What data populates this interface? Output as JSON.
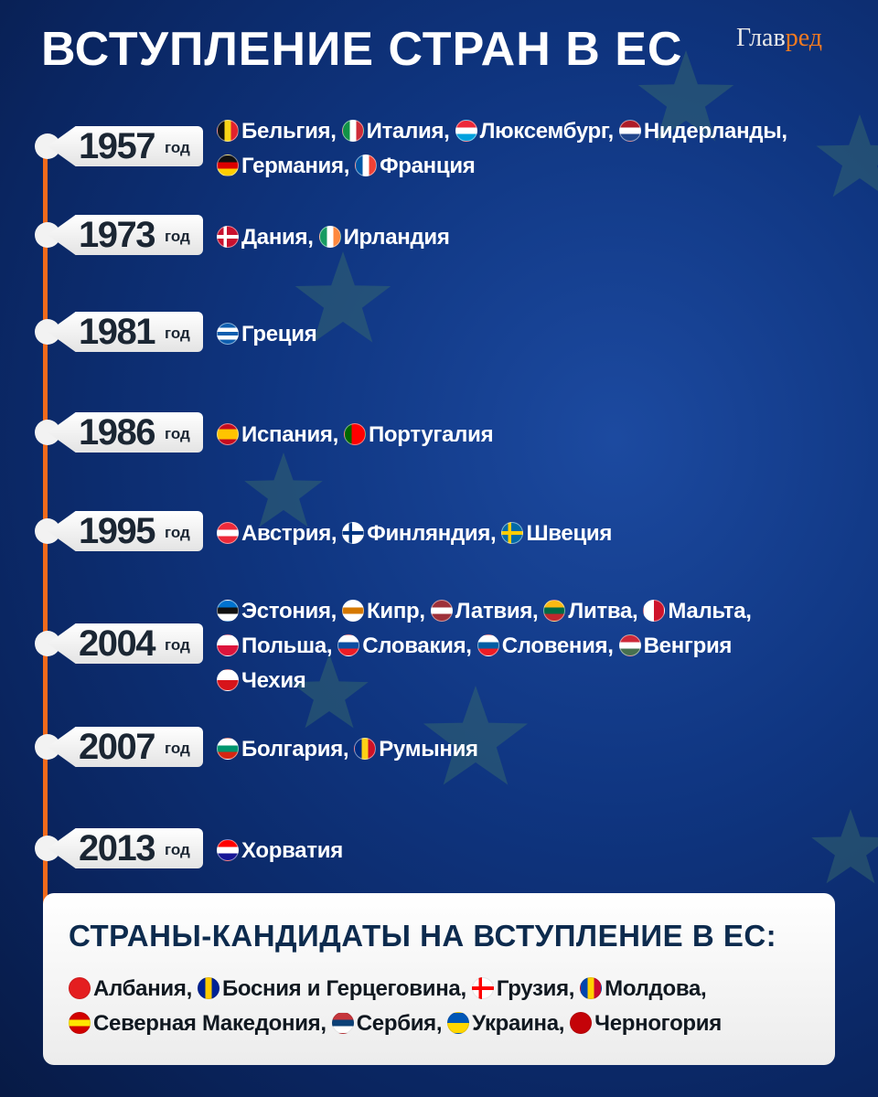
{
  "title": "ВСТУПЛЕНИЕ СТРАН В ЕС",
  "logo": {
    "main": "Глав",
    "accent": "ред"
  },
  "year_suffix": "год",
  "colors": {
    "timeline": "#f26a1b",
    "background": "#0f3580",
    "candidate_title": "#0d2b4e",
    "logo_accent": "#f47a20"
  },
  "timeline": [
    {
      "year": "1957",
      "countries": [
        {
          "name": "Бельгия,",
          "flag": "belgium",
          "dir": "v",
          "colors": [
            "#111",
            "#f8d516",
            "#e3222c"
          ]
        },
        {
          "name": "Италия,",
          "flag": "italy",
          "dir": "v",
          "colors": [
            "#119246",
            "#fff",
            "#ce2b37"
          ]
        },
        {
          "name": "Люксембург,",
          "flag": "luxembourg",
          "dir": "h",
          "colors": [
            "#ed2939",
            "#fff",
            "#00a1de"
          ]
        },
        {
          "name": "Нидерланды,",
          "flag": "netherlands",
          "dir": "h",
          "colors": [
            "#ae1c28",
            "#fff",
            "#21468b"
          ]
        },
        {
          "name": "Германия,",
          "flag": "germany",
          "dir": "h",
          "colors": [
            "#111",
            "#dd0000",
            "#ffce00"
          ]
        },
        {
          "name": "Франция",
          "flag": "france",
          "dir": "v",
          "colors": [
            "#0055a4",
            "#fff",
            "#ef4135"
          ]
        }
      ]
    },
    {
      "year": "1973",
      "countries": [
        {
          "name": "Дания,",
          "flag": "denmark",
          "dir": "cross",
          "colors": [
            "#c8102e",
            "#fff"
          ]
        },
        {
          "name": "Ирландия",
          "flag": "ireland",
          "dir": "v",
          "colors": [
            "#169b62",
            "#fff",
            "#ff883e"
          ]
        }
      ]
    },
    {
      "year": "1981",
      "countries": [
        {
          "name": "Греция",
          "flag": "greece",
          "dir": "h",
          "colors": [
            "#0d5eaf",
            "#fff",
            "#0d5eaf",
            "#fff",
            "#0d5eaf"
          ]
        }
      ]
    },
    {
      "year": "1986",
      "countries": [
        {
          "name": "Испания,",
          "flag": "spain",
          "dir": "h",
          "colors": [
            "#c60b1e",
            "#ffc400",
            "#ffc400",
            "#c60b1e"
          ]
        },
        {
          "name": "Португалия",
          "flag": "portugal",
          "dir": "v",
          "colors": [
            "#006600",
            "#ff0000",
            "#ff0000"
          ]
        }
      ]
    },
    {
      "year": "1995",
      "countries": [
        {
          "name": "Австрия,",
          "flag": "austria",
          "dir": "h",
          "colors": [
            "#ed2939",
            "#fff",
            "#ed2939"
          ]
        },
        {
          "name": "Финляндия,",
          "flag": "finland",
          "dir": "cross",
          "colors": [
            "#fff",
            "#003580"
          ]
        },
        {
          "name": "Швеция",
          "flag": "sweden",
          "dir": "cross",
          "colors": [
            "#006aa7",
            "#fecc00"
          ]
        }
      ]
    },
    {
      "year": "2004",
      "countries": [
        {
          "name": "Эстония,",
          "flag": "estonia",
          "dir": "h",
          "colors": [
            "#0072ce",
            "#111",
            "#fff"
          ]
        },
        {
          "name": "Кипр,",
          "flag": "cyprus",
          "dir": "h",
          "colors": [
            "#fff",
            "#d57800",
            "#fff"
          ]
        },
        {
          "name": "Латвия,",
          "flag": "latvia",
          "dir": "h",
          "colors": [
            "#9e3039",
            "#fff",
            "#9e3039"
          ]
        },
        {
          "name": "Литва,",
          "flag": "lithuania",
          "dir": "h",
          "colors": [
            "#fdb913",
            "#006a44",
            "#c1272d"
          ]
        },
        {
          "name": "Мальта,",
          "flag": "malta",
          "dir": "v",
          "colors": [
            "#fff",
            "#cf142b"
          ]
        },
        {
          "name": "Польша,",
          "flag": "poland",
          "dir": "h",
          "colors": [
            "#fff",
            "#dc143c"
          ]
        },
        {
          "name": "Словакия,",
          "flag": "slovakia",
          "dir": "h",
          "colors": [
            "#fff",
            "#0b4ea2",
            "#ee1c25"
          ]
        },
        {
          "name": "Словения,",
          "flag": "slovenia",
          "dir": "h",
          "colors": [
            "#fff",
            "#005da4",
            "#ed1c24"
          ]
        },
        {
          "name": "Венгрия",
          "flag": "hungary",
          "dir": "h",
          "colors": [
            "#ce2939",
            "#fff",
            "#477050"
          ]
        },
        {
          "name": "Чехия",
          "flag": "czechia",
          "dir": "h",
          "colors": [
            "#fff",
            "#d7141a"
          ]
        }
      ]
    },
    {
      "year": "2007",
      "countries": [
        {
          "name": "Болгария,",
          "flag": "bulgaria",
          "dir": "h",
          "colors": [
            "#fff",
            "#00966e",
            "#d62612"
          ]
        },
        {
          "name": "Румыния",
          "flag": "romania",
          "dir": "v",
          "colors": [
            "#002b7f",
            "#fcd116",
            "#ce1126"
          ]
        }
      ]
    },
    {
      "year": "2013",
      "countries": [
        {
          "name": "Хорватия",
          "flag": "croatia",
          "dir": "h",
          "colors": [
            "#ff0000",
            "#fff",
            "#171796"
          ]
        }
      ]
    }
  ],
  "candidates": {
    "title": "СТРАНЫ-КАНДИДАТЫ НА ВСТУПЛЕНИЕ В ЕС:",
    "countries": [
      {
        "name": "Албания,",
        "flag": "albania",
        "dir": "h",
        "colors": [
          "#e41e20",
          "#e41e20"
        ]
      },
      {
        "name": "Босния и Герцеговина,",
        "flag": "bosnia",
        "dir": "v",
        "colors": [
          "#002395",
          "#fecb00",
          "#002395"
        ]
      },
      {
        "name": "Грузия,",
        "flag": "georgia",
        "dir": "cross",
        "colors": [
          "#fff",
          "#ff0000"
        ]
      },
      {
        "name": "Молдова,",
        "flag": "moldova",
        "dir": "v",
        "colors": [
          "#0046ae",
          "#ffd200",
          "#cc092f"
        ]
      },
      {
        "name": "Северная Македония,",
        "flag": "north-macedonia",
        "dir": "h",
        "colors": [
          "#d20000",
          "#ffe600",
          "#d20000"
        ]
      },
      {
        "name": "Сербия,",
        "flag": "serbia",
        "dir": "h",
        "colors": [
          "#c6363c",
          "#0c4076",
          "#fff"
        ]
      },
      {
        "name": "Украина,",
        "flag": "ukraine",
        "dir": "h",
        "colors": [
          "#0057b7",
          "#ffd700"
        ]
      },
      {
        "name": "Черногория",
        "flag": "montenegro",
        "dir": "h",
        "colors": [
          "#c40308",
          "#c40308"
        ]
      }
    ]
  }
}
